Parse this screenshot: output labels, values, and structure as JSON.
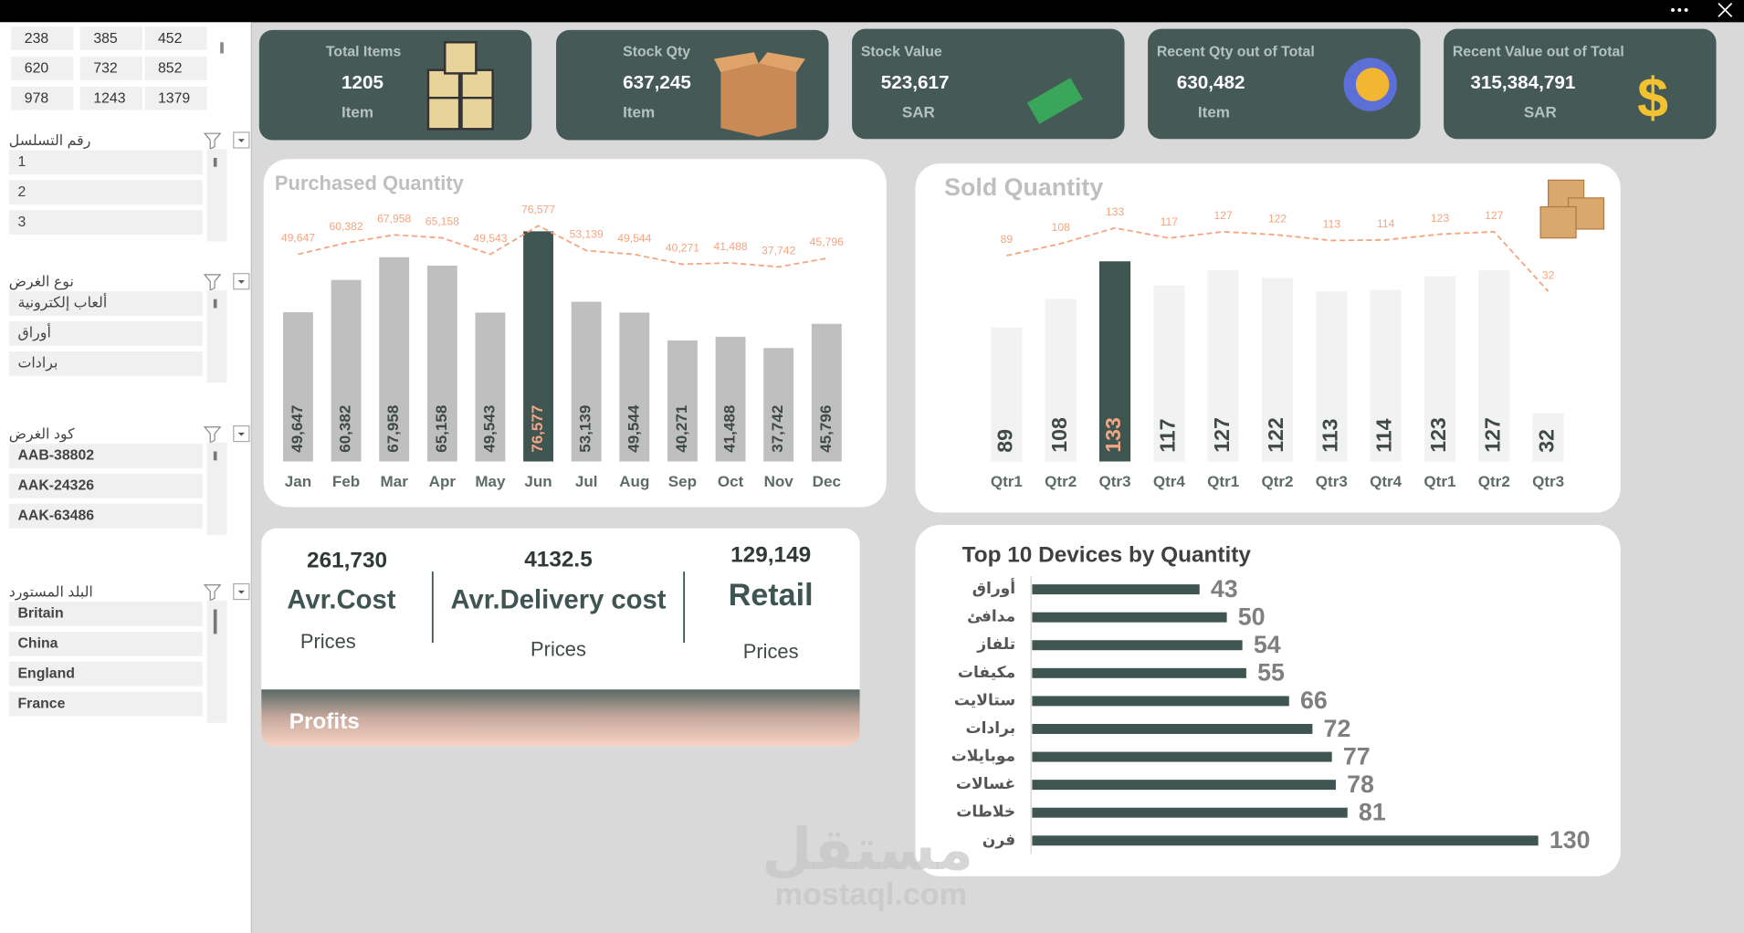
{
  "sidebar": {
    "number_grid": [
      [
        238,
        385,
        452
      ],
      [
        620,
        732,
        852
      ],
      [
        978,
        1243,
        1379
      ]
    ],
    "slicers": [
      {
        "title": "رقم التسلسل",
        "items": [
          1,
          2,
          3
        ]
      },
      {
        "title": "نوع الغرض",
        "items": [
          "ألعاب إلكترونية",
          "أوراق",
          "برادات"
        ]
      },
      {
        "title": "كود الغرض",
        "items": [
          "AAB-38802",
          "AAK-24326",
          "AAK-63486"
        ]
      },
      {
        "title": "البلد المستورد",
        "items": [
          "Britain",
          "China",
          "England",
          "France"
        ]
      }
    ]
  },
  "kpis": [
    {
      "title": "Total Items",
      "value": "1205",
      "unit": "Item"
    },
    {
      "title": "Stock Qty",
      "value": "637,245",
      "unit": "Item"
    },
    {
      "title": "Stock Value",
      "value": "523,617",
      "unit": "SAR"
    },
    {
      "title": "Recent Qty out of Total",
      "value": "630,482",
      "unit": "Item"
    },
    {
      "title": "Recent Value out of  Total",
      "value": "315,384,791",
      "unit": "SAR"
    }
  ],
  "chart_data": [
    {
      "type": "bar",
      "title": "Purchased Quantity",
      "categories": [
        "Jan",
        "Feb",
        "Mar",
        "Apr",
        "May",
        "Jun",
        "Jul",
        "Aug",
        "Sep",
        "Oct",
        "Nov",
        "Dec"
      ],
      "values": [
        49647,
        60382,
        67958,
        65158,
        49543,
        76577,
        53139,
        49544,
        40271,
        41488,
        37742,
        45796
      ],
      "value_labels": [
        "49,647",
        "60,382",
        "67,958",
        "65,158",
        "49,543",
        "76,577",
        "53,139",
        "49,544",
        "40,271",
        "41,488",
        "37,742",
        "45,796"
      ],
      "colors": [
        "#bfbfbf",
        "#bfbfbf",
        "#bfbfbf",
        "#bfbfbf",
        "#bfbfbf",
        "#3f5552",
        "#bfbfbf",
        "#bfbfbf",
        "#bfbfbf",
        "#bfbfbf",
        "#bfbfbf",
        "#bfbfbf"
      ],
      "line_color": "#f4a582"
    },
    {
      "type": "bar",
      "title": "Sold Quantity",
      "categories": [
        "Qtr1",
        "Qtr2",
        "Qtr3",
        "Qtr4",
        "Qtr1",
        "Qtr2",
        "Qtr3",
        "Qtr4",
        "Qtr1",
        "Qtr2",
        "Qtr3"
      ],
      "values": [
        89,
        108,
        133,
        117,
        127,
        122,
        113,
        114,
        123,
        127,
        32
      ],
      "colors": [
        "#f2f2f2",
        "#f2f2f2",
        "#3f5552",
        "#f2f2f2",
        "#f2f2f2",
        "#f2f2f2",
        "#f2f2f2",
        "#f2f2f2",
        "#f2f2f2",
        "#f2f2f2",
        "#f2f2f2"
      ],
      "line_color": "#f4a582"
    },
    {
      "type": "hbar",
      "title": "Top 10 Devices by Quantity",
      "categories": [
        "أوراق",
        "مدافئ",
        "تلفاز",
        "مكيفات",
        "ستالايت",
        "برادات",
        "موبايلات",
        "غسالات",
        "خلاطات",
        "فرن"
      ],
      "values": [
        43,
        50,
        54,
        55,
        66,
        72,
        77,
        78,
        81,
        130
      ],
      "color": "#3f5552"
    }
  ],
  "prices": {
    "items": [
      {
        "value": "261,730",
        "label": "Avr.Cost",
        "sub": "Prices"
      },
      {
        "value": "4132.5",
        "label": "Avr.Delivery cost",
        "sub": "Prices"
      },
      {
        "value": "129,149",
        "label": "Retail",
        "sub": "Prices"
      }
    ],
    "footer": "Profits"
  },
  "watermark": {
    "arabic": "مستقل",
    "latin": "mostaql.com"
  }
}
